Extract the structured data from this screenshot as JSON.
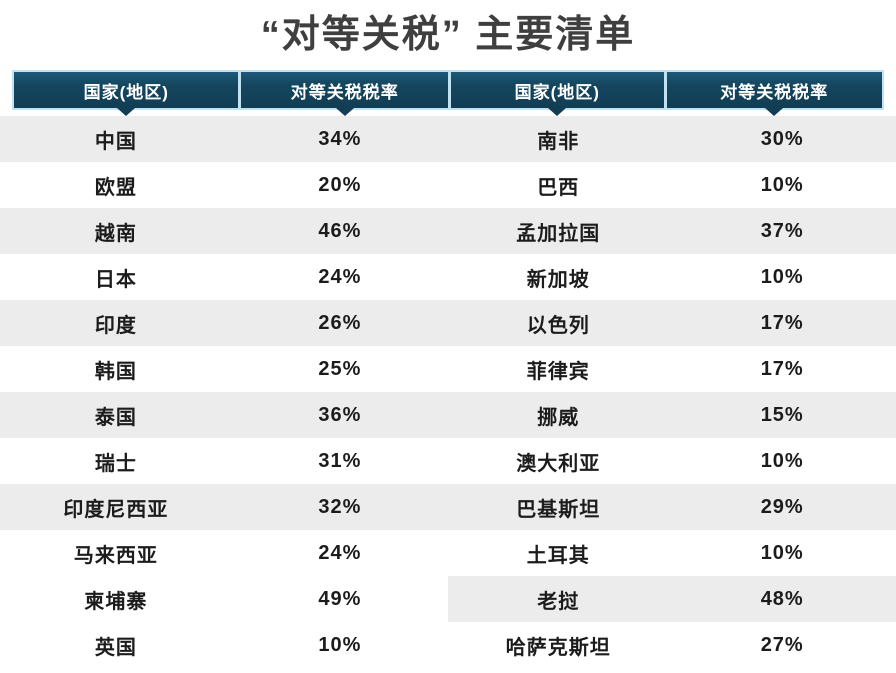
{
  "title": "“对等关税” 主要清单",
  "chart_data": {
    "type": "table",
    "title": "“对等关税” 主要清单",
    "columns": [
      "国家(地区)",
      "对等关税税率",
      "国家(地区)",
      "对等关税税率"
    ],
    "rows": [
      [
        "中国",
        "34%",
        "南非",
        "30%"
      ],
      [
        "欧盟",
        "20%",
        "巴西",
        "10%"
      ],
      [
        "越南",
        "46%",
        "孟加拉国",
        "37%"
      ],
      [
        "日本",
        "24%",
        "新加坡",
        "10%"
      ],
      [
        "印度",
        "26%",
        "以色列",
        "17%"
      ],
      [
        "韩国",
        "25%",
        "菲律宾",
        "17%"
      ],
      [
        "泰国",
        "36%",
        "挪威",
        "15%"
      ],
      [
        "瑞士",
        "31%",
        "澳大利亚",
        "10%"
      ],
      [
        "印度尼西亚",
        "32%",
        "巴基斯坦",
        "29%"
      ],
      [
        "马来西亚",
        "24%",
        "土耳其",
        "10%"
      ],
      [
        "柬埔寨",
        "49%",
        "老挝",
        "48%"
      ],
      [
        "英国",
        "10%",
        "哈萨克斯坦",
        "27%"
      ]
    ]
  },
  "colors": {
    "header_bg": "#15465f",
    "header_border": "#bfe3f0",
    "header_text": "#ffffff",
    "stripe": "#ececec",
    "row_text": "#1c1c1c",
    "title_text": "#3f3f3f"
  }
}
